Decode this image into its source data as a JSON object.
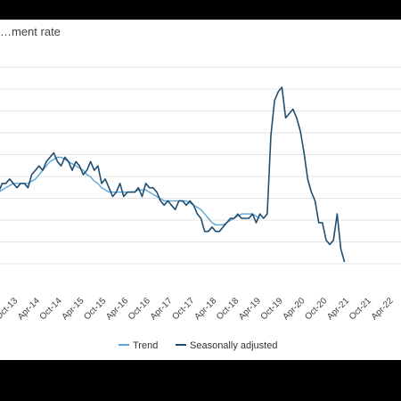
{
  "chart_data": {
    "type": "line",
    "title": "…ment rate",
    "xlabel": "",
    "ylabel": "",
    "grid": true,
    "legend_position": "bottom",
    "x_tick_labels": [
      "Oct-13",
      "Apr-14",
      "Oct-14",
      "Apr-15",
      "Oct-15",
      "Apr-16",
      "Oct-16",
      "Apr-17",
      "Oct-17",
      "Apr-18",
      "Oct-18",
      "Apr-19",
      "Oct-19",
      "Apr-20",
      "Oct-20",
      "Apr-21",
      "Oct-21",
      "Apr-22"
    ],
    "x_range": [
      "Jun-13",
      "Apr-22"
    ],
    "y_range_gridlines": [
      0,
      8
    ],
    "series": [
      {
        "name": "Trend",
        "color": "#5aa6d6",
        "values": [
          4.95,
          5.0,
          5.05,
          5.1,
          5.15,
          5.2,
          5.25,
          5.3,
          5.3,
          5.3,
          5.3,
          5.3,
          5.35,
          5.4,
          5.5,
          5.6,
          5.7,
          5.8,
          5.85,
          5.9,
          5.9,
          5.85,
          5.8,
          5.75,
          5.7,
          5.65,
          5.6,
          5.5,
          5.45,
          5.35,
          5.3,
          5.2,
          5.15,
          5.1,
          5.1,
          5.1,
          5.1,
          5.1,
          5.1,
          5.1,
          5.1,
          5.15,
          5.15,
          5.15,
          5.1,
          5.05,
          5.0,
          4.95,
          4.9,
          4.9,
          4.9,
          4.9,
          4.9,
          4.9,
          4.9,
          4.85,
          4.8,
          4.75,
          4.7,
          4.6,
          4.5,
          4.4,
          4.35,
          4.35,
          4.35,
          4.4,
          4.45,
          4.5,
          4.55,
          4.6,
          4.6,
          4.6,
          4.6,
          4.55,
          4.5
        ]
      },
      {
        "name": "Seasonally adjusted",
        "color": "#1f4e70",
        "values": [
          4.9,
          5.1,
          5.2,
          5.1,
          5.3,
          5.3,
          5.4,
          5.3,
          5.2,
          5.3,
          5.3,
          5.2,
          5.5,
          5.6,
          5.7,
          5.6,
          5.8,
          5.9,
          6.0,
          5.8,
          5.7,
          5.9,
          5.8,
          5.6,
          5.8,
          5.7,
          5.5,
          5.6,
          5.8,
          5.6,
          5.7,
          5.3,
          5.4,
          5.2,
          5.0,
          5.1,
          5.3,
          5.0,
          5.1,
          5.1,
          5.1,
          5.2,
          5.0,
          5.3,
          5.2,
          5.2,
          5.1,
          4.9,
          4.8,
          4.9,
          4.8,
          4.7,
          4.9,
          4.9,
          4.8,
          4.9,
          4.8,
          4.6,
          4.5,
          4.2,
          4.2,
          4.3,
          4.2,
          4.2,
          4.3,
          4.4,
          4.5,
          4.5,
          4.6,
          4.5,
          4.5,
          4.5,
          4.6,
          4.4,
          4.6,
          4.5,
          4.6,
          6.4,
          7.2,
          7.4,
          7.5,
          6.8,
          6.9,
          7.0,
          6.8,
          6.5,
          6.0,
          5.4,
          5.1,
          4.9,
          4.4,
          4.4,
          4.0,
          3.9,
          4.0,
          4.6,
          3.8,
          3.5
        ]
      }
    ]
  }
}
